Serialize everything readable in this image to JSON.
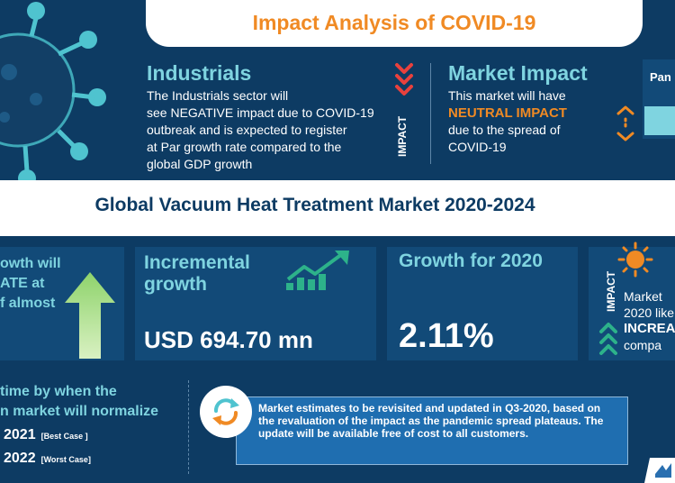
{
  "header": {
    "title": "Impact Analysis of COVID-19"
  },
  "industrials": {
    "heading": "Industrials",
    "body_lines": [
      "The Industrials sector will",
      "see NEGATIVE impact due to COVID-19",
      "outbreak and is expected to register",
      "at Par growth rate compared to the",
      "global GDP growth"
    ],
    "impact_label": "IMPACT"
  },
  "market_impact": {
    "heading": "Market Impact",
    "line1": "This market will have",
    "highlight": "NEUTRAL IMPACT",
    "line3": "due to the spread of",
    "line4": "COVID-19"
  },
  "pandemic_box": {
    "label": "Pan"
  },
  "band": {
    "title": "Global Vacuum Heat Treatment Market 2020-2024"
  },
  "stats": {
    "card1_lines": [
      "owth will",
      "ATE at",
      "f almost"
    ],
    "incremental_label_1": "Incremental",
    "incremental_label_2": "growth",
    "incremental_value": "USD 694.70 mn",
    "growth_label": "Growth for 2020",
    "growth_value": "2.11%",
    "card4_impact_label": "IMPACT",
    "card4_line1": "Market",
    "card4_line2": "2020 like",
    "card4_strong": "INCREA",
    "card4_line4": "compa"
  },
  "normalize": {
    "line1": "time by when the",
    "line2": "n market will normalize",
    "best_year": "2021",
    "best_tag": "[Best Case ]",
    "worst_year": "2022",
    "worst_tag": "[Worst Case]"
  },
  "note": {
    "text": "Market estimates to be revisited and updated in Q3-2020, based on the revaluation of the impact as the pandemic spread plateaus. The update will be available free of cost to all customers."
  },
  "colors": {
    "navy": "#0d3b63",
    "panel": "#124a78",
    "accent_orange": "#f08a24",
    "accent_teal": "#7fd4e0",
    "accent_green": "#2db28a",
    "note_blue": "#1f6eb0"
  },
  "icons": [
    "virus-icon",
    "chevron-down-icon",
    "up-down-arrows-icon",
    "up-arrow-icon",
    "trend-up-icon",
    "sun-icon",
    "chevron-up-icon",
    "refresh-icon",
    "logo-icon"
  ]
}
